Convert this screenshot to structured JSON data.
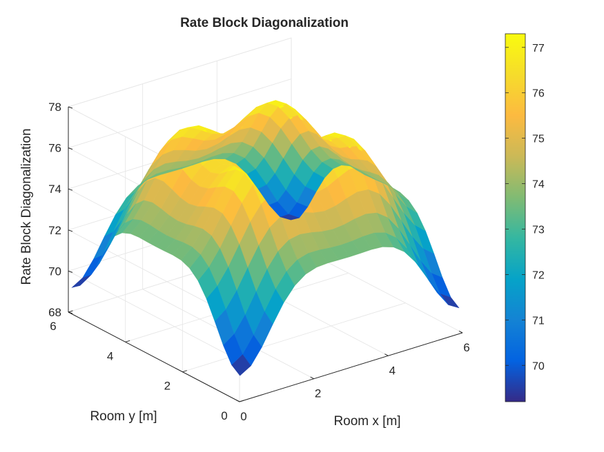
{
  "chart_data": {
    "type": "surface",
    "title": "Rate Block Diagonalization",
    "xlabel": "Room x [m]",
    "ylabel": "Room y [m]",
    "zlabel": "Rate Block Diagonalization",
    "xlim": [
      0,
      6
    ],
    "ylim": [
      0,
      6
    ],
    "zlim": [
      68,
      78
    ],
    "x_ticks": [
      "0",
      "2",
      "4",
      "6"
    ],
    "y_ticks": [
      "0",
      "2",
      "4",
      "6"
    ],
    "z_ticks": [
      "68",
      "70",
      "72",
      "74",
      "76",
      "78"
    ],
    "grid": true,
    "colormap": "parula",
    "colorbar": {
      "position": "right",
      "limits": [
        69.2,
        77.3
      ],
      "ticks": [
        "70",
        "71",
        "72",
        "73",
        "74",
        "75",
        "76",
        "77"
      ]
    },
    "grid_x": [
      0,
      0.25,
      0.5,
      0.75,
      1.0,
      1.25,
      1.5,
      1.75,
      2.0,
      2.25,
      2.5,
      2.75,
      3.0,
      3.25,
      3.5,
      3.75,
      4.0,
      4.25,
      4.5,
      4.75,
      5.0
    ],
    "grid_y": [
      0,
      0.25,
      0.5,
      0.75,
      1.0,
      1.25,
      1.5,
      1.75,
      2.0,
      2.25,
      2.5,
      2.75,
      3.0,
      3.25,
      3.5,
      3.75,
      4.0,
      4.25,
      4.5,
      4.75,
      5.0
    ],
    "z_min": 69.2,
    "z_max": 77.3,
    "peaks": [
      [
        1.5,
        1.5
      ],
      [
        3.5,
        1.5
      ],
      [
        1.5,
        3.5
      ],
      [
        3.5,
        3.5
      ]
    ],
    "center_dip": [
      2.5,
      2.5
    ],
    "corner_lows": [
      [
        0,
        0
      ],
      [
        5,
        0
      ],
      [
        0,
        5
      ],
      [
        5,
        5
      ]
    ]
  }
}
